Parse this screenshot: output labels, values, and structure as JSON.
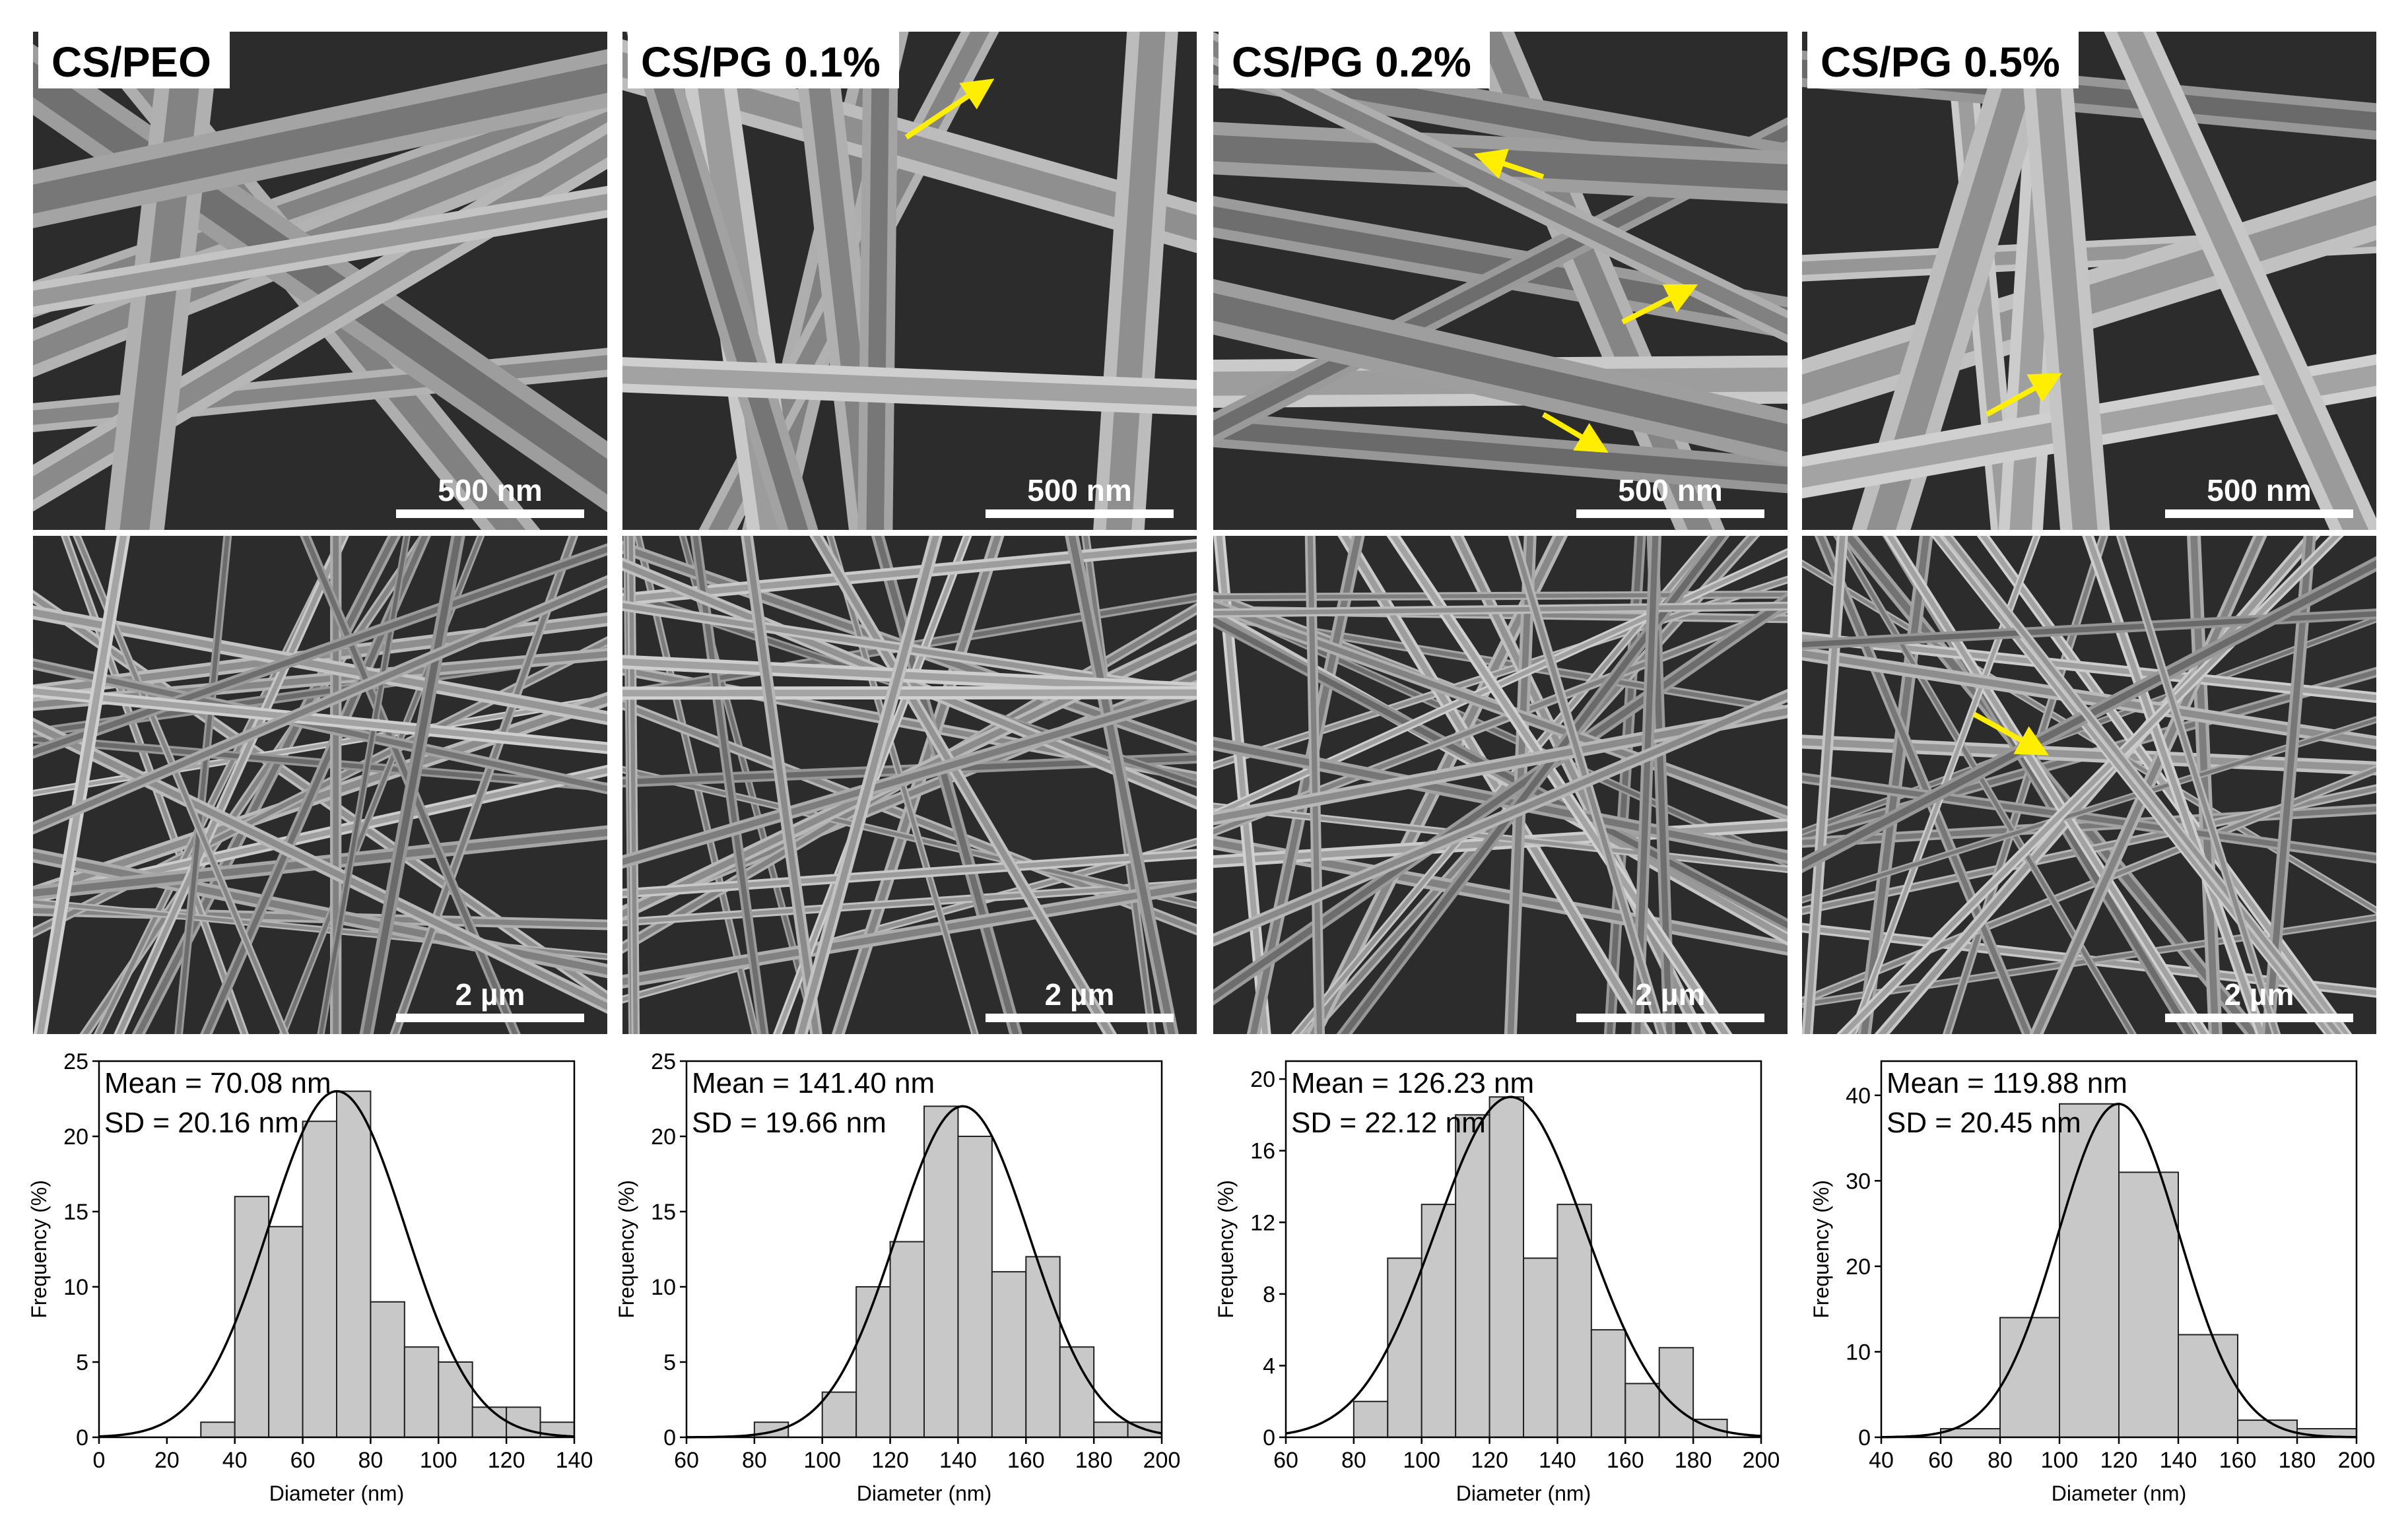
{
  "colors": {
    "arrow": "#ffee00",
    "bar_fill": "#c8c8c8",
    "bar_stroke": "#222222",
    "fit_line": "#000000"
  },
  "samples": [
    {
      "label": "CS/PEO",
      "scale_top": "500 nm",
      "scale_bottom": "2 µm"
    },
    {
      "label": "CS/PG 0.1%",
      "scale_top": "500 nm",
      "scale_bottom": "2 µm"
    },
    {
      "label": "CS/PG 0.2%",
      "scale_top": "500 nm",
      "scale_bottom": "2 µm"
    },
    {
      "label": "CS/PG 0.5%",
      "scale_top": "500 nm",
      "scale_bottom": "2 µm"
    }
  ],
  "chart_data": [
    {
      "type": "bar",
      "mean_text": "Mean = 70.08 nm",
      "sd_text": "SD = 20.16 nm",
      "xlabel": "Diameter (nm)",
      "ylabel": "Frequency (%)",
      "xlim": [
        0,
        140
      ],
      "ylim": [
        0,
        25
      ],
      "xticks": [
        0,
        20,
        40,
        60,
        80,
        100,
        120,
        140
      ],
      "yticks": [
        0,
        5,
        10,
        15,
        20,
        25
      ],
      "bin_width": 10,
      "bin_centers": [
        35,
        45,
        55,
        65,
        75,
        85,
        95,
        105,
        115,
        125,
        135
      ],
      "values": [
        1,
        16,
        14,
        21,
        23,
        9,
        6,
        5,
        2,
        2,
        1
      ],
      "fit": {
        "type": "gaussian",
        "mean": 70.08,
        "sd": 20.16,
        "peak": 23
      }
    },
    {
      "type": "bar",
      "mean_text": "Mean = 141.40 nm",
      "sd_text": "SD = 19.66 nm",
      "xlabel": "Diameter (nm)",
      "ylabel": "Frequency (%)",
      "xlim": [
        60,
        200
      ],
      "ylim": [
        0,
        25
      ],
      "xticks": [
        60,
        80,
        100,
        120,
        140,
        160,
        180,
        200
      ],
      "yticks": [
        0,
        5,
        10,
        15,
        20,
        25
      ],
      "bin_width": 10,
      "bin_centers": [
        85,
        95,
        105,
        115,
        125,
        135,
        145,
        155,
        165,
        175,
        185,
        195
      ],
      "values": [
        1,
        0,
        3,
        10,
        13,
        22,
        20,
        11,
        12,
        6,
        1,
        1
      ],
      "fit": {
        "type": "gaussian",
        "mean": 141.4,
        "sd": 19.66,
        "peak": 22
      }
    },
    {
      "type": "bar",
      "mean_text": "Mean = 126.23 nm",
      "sd_text": "SD = 22.12 nm",
      "xlabel": "Diameter (nm)",
      "ylabel": "Frequency (%)",
      "xlim": [
        60,
        200
      ],
      "ylim": [
        0,
        21
      ],
      "xticks": [
        60,
        80,
        100,
        120,
        140,
        160,
        180,
        200
      ],
      "yticks": [
        0,
        4,
        8,
        12,
        16,
        20
      ],
      "bin_width": 10,
      "bin_centers": [
        85,
        95,
        105,
        115,
        125,
        135,
        145,
        155,
        165,
        175,
        185
      ],
      "values": [
        2,
        10,
        13,
        18,
        19,
        10,
        13,
        6,
        3,
        5,
        1
      ],
      "fit": {
        "type": "gaussian",
        "mean": 126.23,
        "sd": 22.12,
        "peak": 19
      }
    },
    {
      "type": "bar",
      "mean_text": "Mean = 119.88 nm",
      "sd_text": "SD = 20.45 nm",
      "xlabel": "Diameter (nm)",
      "ylabel": "Frequency (%)",
      "xlim": [
        40,
        200
      ],
      "ylim": [
        0,
        44
      ],
      "xticks": [
        40,
        60,
        80,
        100,
        120,
        140,
        160,
        180,
        200
      ],
      "yticks": [
        0,
        10,
        20,
        30,
        40
      ],
      "bin_width": 20,
      "bin_centers": [
        70,
        90,
        110,
        130,
        150,
        170,
        190
      ],
      "values": [
        1,
        14,
        39,
        31,
        12,
        2,
        1
      ],
      "fit": {
        "type": "gaussian",
        "mean": 119.88,
        "sd": 20.45,
        "peak": 39
      }
    }
  ]
}
